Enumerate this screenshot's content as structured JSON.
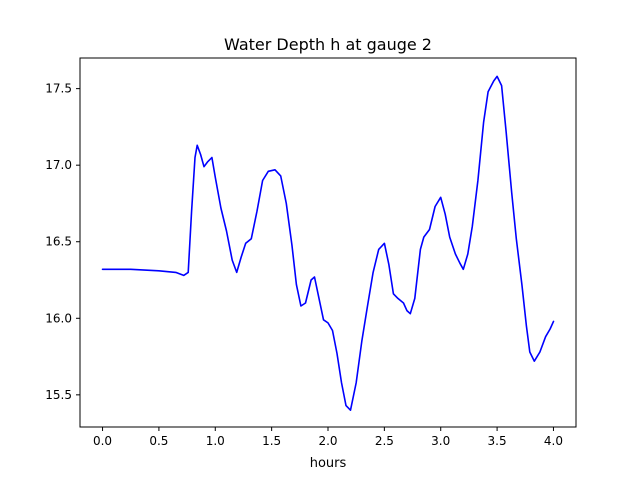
{
  "chart_data": {
    "type": "line",
    "title": "Water Depth h at gauge 2",
    "xlabel": "hours",
    "ylabel": "",
    "xlim": [
      -0.2,
      4.2
    ],
    "ylim": [
      15.29,
      17.7
    ],
    "xticks": [
      0.0,
      0.5,
      1.0,
      1.5,
      2.0,
      2.5,
      3.0,
      3.5,
      4.0
    ],
    "xtick_labels": [
      "0.0",
      "0.5",
      "1.0",
      "1.5",
      "2.0",
      "2.5",
      "3.0",
      "3.5",
      "4.0"
    ],
    "yticks": [
      15.5,
      16.0,
      16.5,
      17.0,
      17.5
    ],
    "ytick_labels": [
      "15.5",
      "16.0",
      "16.5",
      "17.0",
      "17.5"
    ],
    "grid": false,
    "legend": "none",
    "series": [
      {
        "color": "#0000ff",
        "points": [
          [
            0.0,
            16.32
          ],
          [
            0.25,
            16.32
          ],
          [
            0.5,
            16.31
          ],
          [
            0.65,
            16.3
          ],
          [
            0.72,
            16.28
          ],
          [
            0.76,
            16.3
          ],
          [
            0.79,
            16.7
          ],
          [
            0.82,
            17.05
          ],
          [
            0.84,
            17.13
          ],
          [
            0.87,
            17.07
          ],
          [
            0.9,
            16.99
          ],
          [
            0.93,
            17.02
          ],
          [
            0.97,
            17.05
          ],
          [
            1.0,
            16.92
          ],
          [
            1.05,
            16.72
          ],
          [
            1.1,
            16.57
          ],
          [
            1.15,
            16.38
          ],
          [
            1.19,
            16.3
          ],
          [
            1.23,
            16.4
          ],
          [
            1.27,
            16.49
          ],
          [
            1.32,
            16.52
          ],
          [
            1.37,
            16.7
          ],
          [
            1.42,
            16.9
          ],
          [
            1.47,
            16.96
          ],
          [
            1.53,
            16.97
          ],
          [
            1.58,
            16.93
          ],
          [
            1.63,
            16.75
          ],
          [
            1.68,
            16.48
          ],
          [
            1.72,
            16.22
          ],
          [
            1.76,
            16.08
          ],
          [
            1.8,
            16.1
          ],
          [
            1.85,
            16.25
          ],
          [
            1.88,
            16.27
          ],
          [
            1.92,
            16.13
          ],
          [
            1.96,
            15.99
          ],
          [
            2.0,
            15.97
          ],
          [
            2.04,
            15.92
          ],
          [
            2.08,
            15.77
          ],
          [
            2.12,
            15.58
          ],
          [
            2.16,
            15.43
          ],
          [
            2.2,
            15.4
          ],
          [
            2.25,
            15.58
          ],
          [
            2.3,
            15.85
          ],
          [
            2.35,
            16.08
          ],
          [
            2.4,
            16.3
          ],
          [
            2.45,
            16.45
          ],
          [
            2.5,
            16.49
          ],
          [
            2.54,
            16.35
          ],
          [
            2.58,
            16.16
          ],
          [
            2.62,
            16.13
          ],
          [
            2.67,
            16.1
          ],
          [
            2.7,
            16.05
          ],
          [
            2.73,
            16.03
          ],
          [
            2.77,
            16.13
          ],
          [
            2.82,
            16.45
          ],
          [
            2.85,
            16.53
          ],
          [
            2.9,
            16.58
          ],
          [
            2.95,
            16.73
          ],
          [
            3.0,
            16.79
          ],
          [
            3.04,
            16.68
          ],
          [
            3.08,
            16.53
          ],
          [
            3.13,
            16.42
          ],
          [
            3.17,
            16.36
          ],
          [
            3.2,
            16.32
          ],
          [
            3.24,
            16.42
          ],
          [
            3.28,
            16.6
          ],
          [
            3.33,
            16.9
          ],
          [
            3.38,
            17.28
          ],
          [
            3.42,
            17.48
          ],
          [
            3.47,
            17.55
          ],
          [
            3.5,
            17.58
          ],
          [
            3.54,
            17.52
          ],
          [
            3.58,
            17.22
          ],
          [
            3.63,
            16.82
          ],
          [
            3.67,
            16.52
          ],
          [
            3.72,
            16.22
          ],
          [
            3.76,
            15.95
          ],
          [
            3.79,
            15.78
          ],
          [
            3.83,
            15.72
          ],
          [
            3.88,
            15.78
          ],
          [
            3.93,
            15.88
          ],
          [
            3.97,
            15.93
          ],
          [
            4.0,
            15.98
          ]
        ]
      }
    ]
  }
}
